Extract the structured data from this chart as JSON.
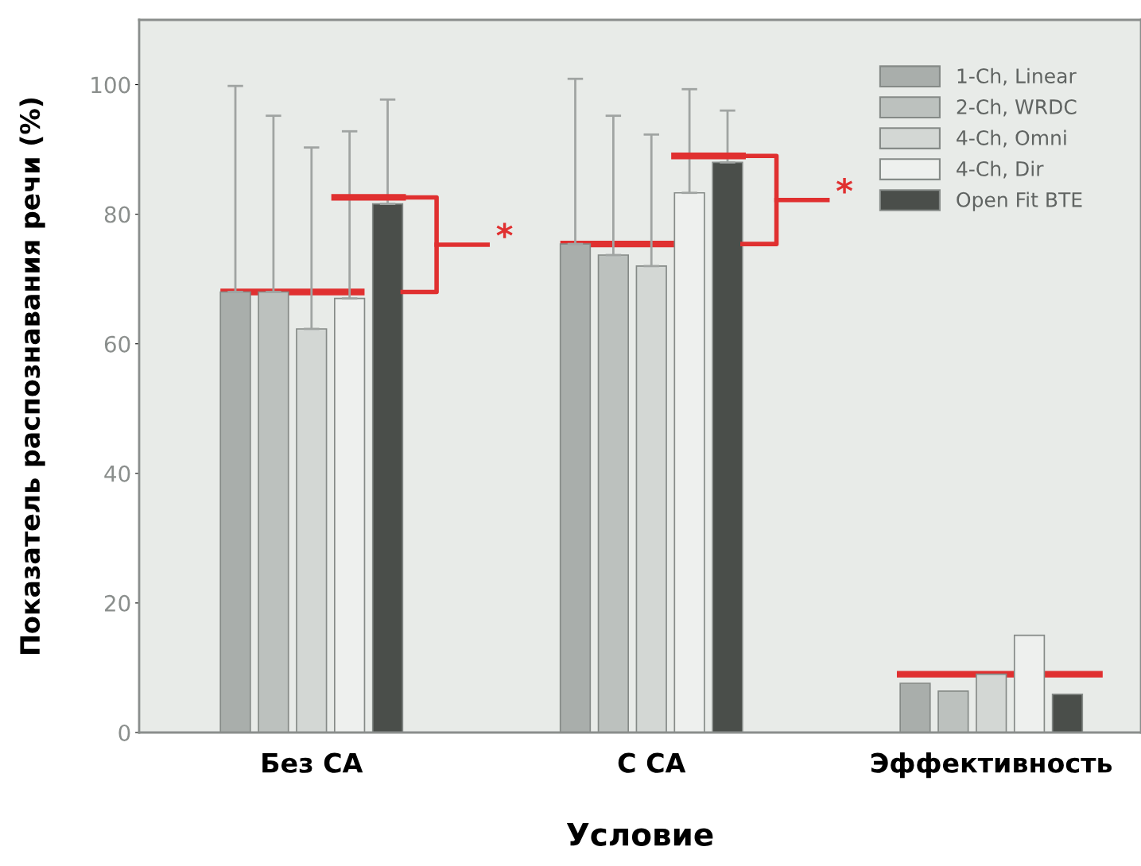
{
  "chart_data": {
    "type": "bar",
    "xlabel": "Условие",
    "ylabel": "Показатель распознавания речи (%)",
    "categories": [
      "Без СА",
      "С СА",
      "Эффективность"
    ],
    "ylim": [
      0,
      110
    ],
    "yticks": [
      0,
      20,
      40,
      60,
      80,
      100
    ],
    "series": [
      {
        "name": "1-Ch, Linear",
        "color": "#a9aeab",
        "values": [
          68,
          75.4,
          7.6
        ],
        "errors": [
          [
            68,
            99.8
          ],
          [
            75.4,
            100.9
          ],
          null
        ]
      },
      {
        "name": "2-Ch, WRDC",
        "color": "#bcc1be",
        "values": [
          68,
          73.7,
          6.4
        ],
        "errors": [
          [
            68,
            95.2
          ],
          [
            73.7,
            95.2
          ],
          null
        ]
      },
      {
        "name": "4-Ch, Omni",
        "color": "#d3d7d4",
        "values": [
          62.3,
          72,
          9
        ],
        "errors": [
          [
            62.3,
            90.3
          ],
          [
            72,
            92.3
          ],
          null
        ]
      },
      {
        "name": "4-Ch, Dir",
        "color": "#eef0ee",
        "values": [
          67,
          83.3,
          15
        ],
        "errors": [
          [
            67,
            92.8
          ],
          [
            83.3,
            99.3
          ],
          null
        ]
      },
      {
        "name": "Open Fit BTE",
        "color": "#4a4e4a",
        "values": [
          81.6,
          88,
          5.9
        ],
        "errors": [
          [
            81.6,
            97.7
          ],
          [
            88,
            96
          ],
          null
        ]
      }
    ],
    "annotations": [
      "*",
      "*"
    ],
    "legend": "top right",
    "grid": false
  }
}
